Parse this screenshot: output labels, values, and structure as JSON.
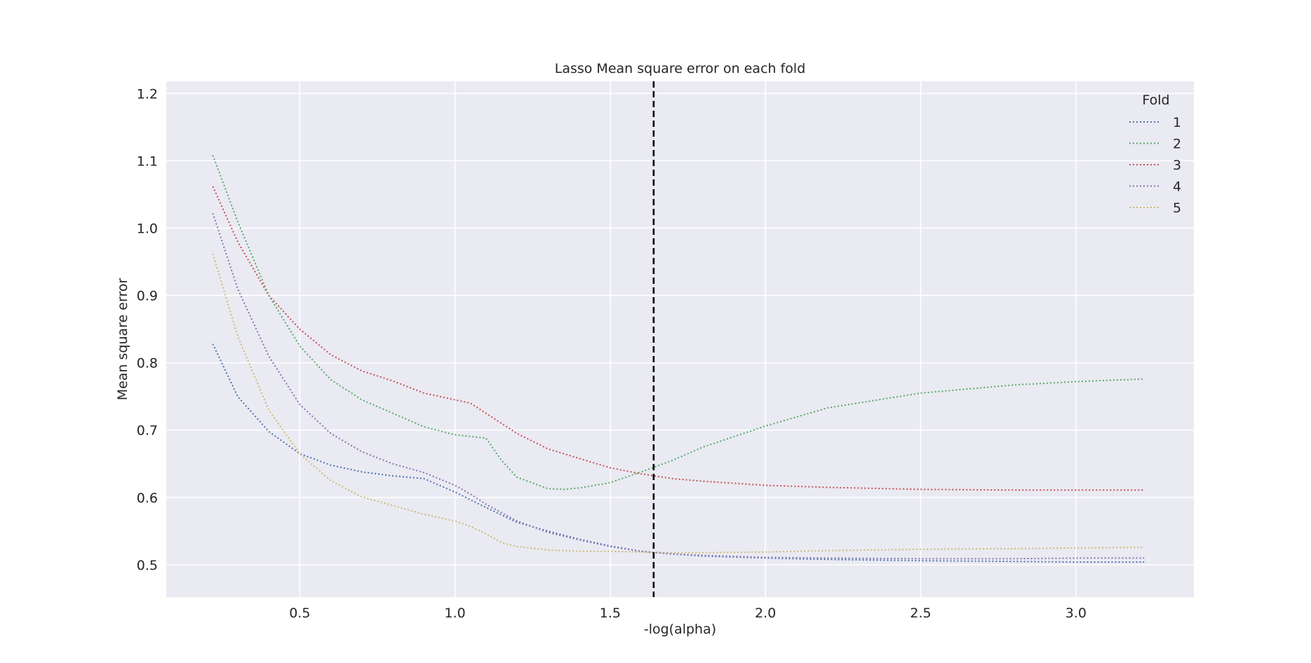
{
  "chart_data": {
    "type": "line",
    "title": "Lasso Mean square error on each fold",
    "xlabel": "-log(alpha)",
    "ylabel": "Mean square error",
    "xlim": [
      0.07,
      3.38
    ],
    "ylim": [
      0.452,
      1.218
    ],
    "xticks": [
      0.5,
      1.0,
      1.5,
      2.0,
      2.5,
      3.0
    ],
    "xtick_labels": [
      "0.5",
      "1.0",
      "1.5",
      "2.0",
      "2.5",
      "3.0"
    ],
    "yticks": [
      0.5,
      0.6,
      0.7,
      0.8,
      0.9,
      1.0,
      1.1,
      1.2
    ],
    "ytick_labels": [
      "0.5",
      "0.6",
      "0.7",
      "0.8",
      "0.9",
      "1.0",
      "1.1",
      "1.2"
    ],
    "grid": true,
    "legend": {
      "title": "Fold",
      "position": "top-right"
    },
    "vline": {
      "x": 1.64,
      "style": "dashed",
      "color": "#000000"
    },
    "series": [
      {
        "name": "1",
        "color": "#4C72B0",
        "x": [
          0.22,
          0.3,
          0.4,
          0.5,
          0.6,
          0.7,
          0.8,
          0.9,
          1.0,
          1.1,
          1.2,
          1.3,
          1.4,
          1.5,
          1.6,
          1.7,
          1.8,
          2.0,
          2.2,
          2.5,
          2.8,
          3.0,
          3.22
        ],
        "y": [
          0.828,
          0.75,
          0.698,
          0.665,
          0.648,
          0.638,
          0.632,
          0.628,
          0.608,
          0.585,
          0.563,
          0.55,
          0.538,
          0.528,
          0.52,
          0.516,
          0.513,
          0.51,
          0.508,
          0.506,
          0.505,
          0.504,
          0.504
        ]
      },
      {
        "name": "2",
        "color": "#55A868",
        "x": [
          0.22,
          0.3,
          0.4,
          0.5,
          0.6,
          0.7,
          0.8,
          0.9,
          1.0,
          1.1,
          1.15,
          1.2,
          1.3,
          1.35,
          1.4,
          1.5,
          1.6,
          1.7,
          1.8,
          2.0,
          2.2,
          2.5,
          2.8,
          3.0,
          3.22
        ],
        "y": [
          1.108,
          1.01,
          0.9,
          0.825,
          0.775,
          0.745,
          0.725,
          0.705,
          0.693,
          0.688,
          0.655,
          0.63,
          0.613,
          0.612,
          0.614,
          0.622,
          0.638,
          0.655,
          0.675,
          0.706,
          0.733,
          0.755,
          0.767,
          0.772,
          0.776
        ]
      },
      {
        "name": "3",
        "color": "#C44E52",
        "x": [
          0.22,
          0.3,
          0.4,
          0.5,
          0.6,
          0.7,
          0.8,
          0.9,
          1.0,
          1.05,
          1.1,
          1.2,
          1.3,
          1.4,
          1.5,
          1.6,
          1.7,
          1.8,
          2.0,
          2.2,
          2.5,
          2.8,
          3.0,
          3.22
        ],
        "y": [
          1.062,
          0.98,
          0.9,
          0.85,
          0.812,
          0.788,
          0.773,
          0.755,
          0.745,
          0.74,
          0.725,
          0.695,
          0.672,
          0.658,
          0.644,
          0.635,
          0.628,
          0.624,
          0.618,
          0.615,
          0.612,
          0.611,
          0.611,
          0.611
        ]
      },
      {
        "name": "4",
        "color": "#8172B2",
        "x": [
          0.22,
          0.3,
          0.4,
          0.5,
          0.6,
          0.7,
          0.8,
          0.9,
          1.0,
          1.05,
          1.1,
          1.2,
          1.3,
          1.4,
          1.5,
          1.6,
          1.7,
          1.8,
          2.0,
          2.2,
          2.5,
          2.8,
          3.0,
          3.22
        ],
        "y": [
          1.022,
          0.91,
          0.81,
          0.738,
          0.695,
          0.668,
          0.65,
          0.637,
          0.618,
          0.605,
          0.59,
          0.565,
          0.548,
          0.537,
          0.527,
          0.52,
          0.516,
          0.514,
          0.511,
          0.51,
          0.509,
          0.509,
          0.51,
          0.51
        ]
      },
      {
        "name": "5",
        "color": "#CCB974",
        "x": [
          0.22,
          0.3,
          0.4,
          0.5,
          0.6,
          0.7,
          0.8,
          0.9,
          1.0,
          1.05,
          1.1,
          1.15,
          1.2,
          1.3,
          1.4,
          1.5,
          1.6,
          1.7,
          1.8,
          2.0,
          2.2,
          2.5,
          2.8,
          3.0,
          3.22
        ],
        "y": [
          0.962,
          0.84,
          0.73,
          0.665,
          0.625,
          0.601,
          0.588,
          0.575,
          0.565,
          0.557,
          0.546,
          0.533,
          0.527,
          0.522,
          0.52,
          0.52,
          0.519,
          0.518,
          0.518,
          0.519,
          0.521,
          0.523,
          0.524,
          0.525,
          0.526
        ]
      }
    ]
  }
}
